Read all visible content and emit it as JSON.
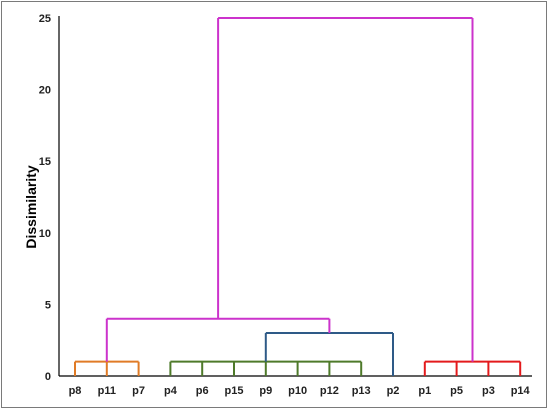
{
  "chart_data": {
    "type": "dendrogram",
    "title": "",
    "xlabel": "",
    "ylabel": "Dissimilarity",
    "ylim": [
      0,
      25
    ],
    "yticks": [
      0,
      5,
      10,
      15,
      20,
      25
    ],
    "leaves": [
      "p8",
      "p11",
      "p7",
      "p4",
      "p6",
      "p15",
      "p9",
      "p10",
      "p12",
      "p13",
      "p2",
      "p1",
      "p5",
      "p3",
      "p14"
    ],
    "merges": [
      {
        "children": [
          "p8",
          "p11",
          "p7"
        ],
        "height": 1.0,
        "color": "#E07B26"
      },
      {
        "children": [
          "p4",
          "p6",
          "p15",
          "p9",
          "p10",
          "p12",
          "p13"
        ],
        "height": 1.0,
        "color": "#4E7A2A"
      },
      {
        "children": [
          "p1",
          "p5",
          "p3",
          "p14"
        ],
        "height": 1.0,
        "color": "#E31A1C"
      },
      {
        "children": [
          "cluster(p4..p13)",
          "p2"
        ],
        "height": 3.0,
        "color": "#2E5A87"
      },
      {
        "children": [
          "cluster(p8,p11,p7)",
          "cluster(p4..p2)"
        ],
        "height": 4.0,
        "color": "#CC33CC"
      },
      {
        "children": [
          "cluster(p8..p2)",
          "cluster(p1,p5,p3,p14)"
        ],
        "height": 25.0,
        "color": "#CC33CC"
      }
    ]
  }
}
